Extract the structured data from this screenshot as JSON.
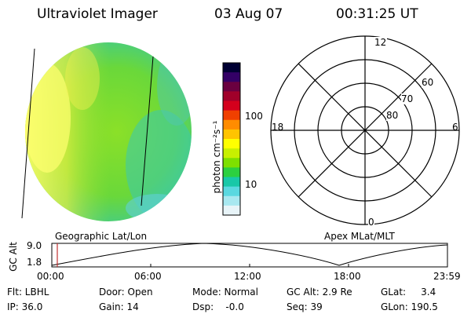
{
  "header": {
    "instrument": "Ultraviolet Imager",
    "date": "03 Aug 07",
    "time": "00:31:25 UT"
  },
  "colorbar": {
    "unit_label": "photon cm⁻²s⁻¹",
    "ticks": [
      "100",
      "10"
    ],
    "colors": [
      "#000033",
      "#330066",
      "#6a0040",
      "#a0002a",
      "#d4001c",
      "#f04000",
      "#ff8c00",
      "#ffc400",
      "#ffff00",
      "#c8f000",
      "#7ee000",
      "#2cd040",
      "#18c8a8",
      "#5ad8e0",
      "#a8e8f0",
      "#e8f4f8"
    ]
  },
  "polar_grid": {
    "mlt_labels": [
      "12",
      "18",
      "6",
      "0"
    ],
    "lat_labels": [
      "60",
      "70",
      "80"
    ]
  },
  "panel_labels": {
    "left": "Geographic Lat/Lon",
    "right": "Apex MLat/MLT"
  },
  "altitude_plot": {
    "ylabel": "GC Alt",
    "y_ticks": [
      "9.0",
      "1.8"
    ],
    "x_ticks": [
      "00:00",
      "06:00",
      "12:00",
      "18:00",
      "23:59"
    ]
  },
  "info": {
    "row1": {
      "flt": "Flt: LBHL",
      "door": "Door: Open",
      "mode": "Mode: Normal",
      "gcalt": "GC Alt: 2.9 Re",
      "glat": "GLat:     3.4"
    },
    "row2": {
      "ip": "IP: 36.0",
      "gain": "Gain: 14",
      "dsp": "Dsp:    -0.0",
      "seq": "Seq: 39",
      "glon": "GLon: 190.5"
    }
  }
}
